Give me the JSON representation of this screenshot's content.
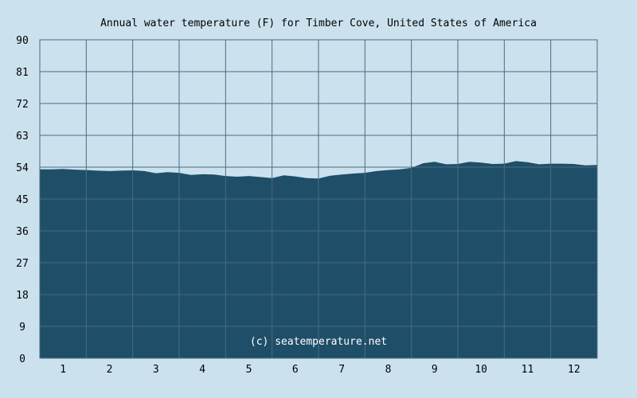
{
  "chart_data": {
    "type": "area",
    "title": "Annual water temperature (F) for Timber Cove, United States of America",
    "xlabel": "",
    "ylabel": "",
    "ylim": [
      0,
      90
    ],
    "yticks": [
      0,
      9,
      18,
      27,
      36,
      45,
      54,
      63,
      72,
      81,
      90
    ],
    "categories": [
      "1",
      "2",
      "3",
      "4",
      "5",
      "6",
      "7",
      "8",
      "9",
      "10",
      "11",
      "12"
    ],
    "grid": true,
    "legend": "none",
    "series": [
      {
        "x": [
          0,
          0.25,
          0.5,
          0.75,
          1.0,
          1.25,
          1.5,
          1.75,
          2.0,
          2.25,
          2.5,
          2.75,
          3.0,
          3.25,
          3.5,
          3.75,
          4.0,
          4.25,
          4.5,
          4.75,
          5.0,
          5.25,
          5.5,
          5.75,
          6.0,
          6.25,
          6.5,
          6.75,
          7.0,
          7.25,
          7.5,
          7.75,
          8.0,
          8.25,
          8.5,
          8.75,
          9.0,
          9.25,
          9.5,
          9.75,
          10.0,
          10.25,
          10.5,
          10.75,
          11.0,
          11.25,
          11.5,
          11.75,
          12.0
        ],
        "values": [
          53.4,
          53.4,
          53.5,
          53.3,
          53.2,
          53.0,
          52.9,
          53.0,
          53.1,
          52.9,
          52.3,
          52.6,
          52.4,
          51.8,
          52.0,
          51.9,
          51.5,
          51.3,
          51.5,
          51.2,
          50.9,
          51.7,
          51.4,
          50.9,
          50.8,
          51.6,
          51.9,
          52.2,
          52.4,
          52.9,
          53.2,
          53.4,
          53.8,
          55.1,
          55.5,
          54.8,
          54.9,
          55.5,
          55.3,
          54.9,
          55.0,
          55.7,
          55.4,
          54.8,
          55.0,
          55.0,
          54.9,
          54.5,
          54.6
        ]
      }
    ],
    "colors": {
      "background": "#cbe2ee",
      "plot_background": "#cbe2ee",
      "area_fill": "#1f4f68",
      "grid": "#4a6a80"
    }
  },
  "watermark": "(c) seatemperature.net"
}
